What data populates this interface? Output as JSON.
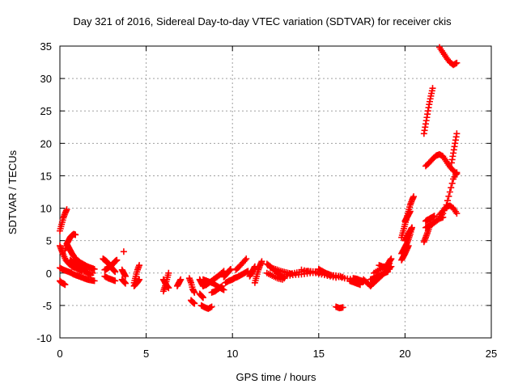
{
  "chart_data": {
    "type": "scatter",
    "title": "Day 321 of 2016, Sidereal Day-to-day VTEC variation (SDTVAR) for receiver ckis",
    "xlabel": "GPS time / hours",
    "ylabel": "SDTVAR / TECUs",
    "xlim": [
      0,
      25
    ],
    "ylim": [
      -10,
      35
    ],
    "xticks": [
      0,
      5,
      10,
      15,
      20,
      25
    ],
    "yticks": [
      -10,
      -5,
      0,
      5,
      10,
      15,
      20,
      25,
      30,
      35
    ],
    "xtick_labels": [
      "0",
      "5",
      "10",
      "15",
      "20",
      "25"
    ],
    "ytick_labels": [
      "-10",
      "-5",
      "0",
      "5",
      "10",
      "15",
      "20",
      "25",
      "30",
      "35"
    ],
    "grid": true,
    "marker": "+",
    "color": "#ff0000",
    "series": [
      {
        "name": "SDTVAR",
        "segments": [
          {
            "x": [
              0.0,
              0.1,
              0.2,
              0.3,
              0.4
            ],
            "y": [
              6.5,
              7.5,
              8.5,
              9.2,
              9.8
            ]
          },
          {
            "x": [
              0.0,
              0.1,
              0.2,
              0.3
            ],
            "y": [
              -1.2,
              -1.5,
              -1.6,
              -1.8
            ]
          },
          {
            "x": [
              0.0,
              0.1,
              0.2,
              0.35,
              0.5,
              0.7,
              0.9,
              1.1,
              1.3,
              1.6,
              1.9
            ],
            "y": [
              4.2,
              3.5,
              2.8,
              2.0,
              1.5,
              1.0,
              0.8,
              0.5,
              0.3,
              0.1,
              0.0
            ]
          },
          {
            "x": [
              0.3,
              0.4,
              0.5,
              0.6,
              0.7,
              0.8,
              0.9
            ],
            "y": [
              3.5,
              4.5,
              5.0,
              5.5,
              5.8,
              6.0,
              5.9
            ]
          },
          {
            "x": [
              0.4,
              0.5,
              0.6,
              0.7,
              0.8,
              1.0,
              1.2,
              1.4,
              1.6,
              1.8,
              2.0
            ],
            "y": [
              4.5,
              4.0,
              3.5,
              3.0,
              2.6,
              2.0,
              1.6,
              1.3,
              1.0,
              0.8,
              0.6
            ]
          },
          {
            "x": [
              0.0,
              0.2,
              0.4,
              0.6,
              0.8,
              1.0,
              1.2,
              1.4,
              1.6,
              1.8,
              2.0
            ],
            "y": [
              0.8,
              0.5,
              0.3,
              0.1,
              -0.2,
              -0.4,
              -0.6,
              -0.8,
              -1.0,
              -1.1,
              -1.2
            ]
          },
          {
            "x": [
              0.6,
              0.8,
              1.0,
              1.2,
              1.4,
              1.6,
              1.8
            ],
            "y": [
              2.0,
              1.6,
              1.2,
              0.8,
              0.4,
              0.0,
              -0.3
            ]
          },
          {
            "x": [
              2.5,
              2.6,
              2.7,
              2.8,
              2.9,
              3.0,
              3.1,
              3.2
            ],
            "y": [
              2.2,
              2.0,
              1.8,
              1.5,
              1.2,
              0.8,
              0.5,
              0.2
            ]
          },
          {
            "x": [
              2.6,
              2.7,
              2.8,
              2.9,
              3.0,
              3.1,
              3.2,
              3.3
            ],
            "y": [
              0.5,
              0.6,
              0.8,
              1.0,
              1.2,
              1.5,
              1.8,
              2.0
            ]
          },
          {
            "x": [
              2.6,
              2.8,
              3.0,
              3.2
            ],
            "y": [
              -0.5,
              -0.8,
              -1.0,
              -1.2
            ]
          },
          {
            "x": [
              3.6,
              3.7,
              3.8
            ],
            "y": [
              0.5,
              0.0,
              -0.5
            ]
          },
          {
            "x": [
              3.6,
              3.7,
              3.8
            ],
            "y": [
              -1.0,
              -1.3,
              -1.6
            ]
          },
          {
            "x": [
              3.7
            ],
            "y": [
              3.3
            ]
          },
          {
            "x": [
              4.3,
              4.4,
              4.5,
              4.6
            ],
            "y": [
              -1.5,
              -0.5,
              0.5,
              1.2
            ]
          },
          {
            "x": [
              4.3,
              4.4,
              4.5,
              4.6
            ],
            "y": [
              -2.0,
              -1.7,
              -1.4,
              -1.0
            ]
          },
          {
            "x": [
              6.0,
              6.1,
              6.2,
              6.3
            ],
            "y": [
              -2.8,
              -2.0,
              -1.0,
              0.0
            ]
          },
          {
            "x": [
              6.0,
              6.1,
              6.2,
              6.3
            ],
            "y": [
              -1.0,
              -1.5,
              -2.0,
              -2.3
            ]
          },
          {
            "x": [
              6.8,
              6.9,
              7.0
            ],
            "y": [
              -2.0,
              -1.5,
              -1.0
            ]
          },
          {
            "x": [
              7.5,
              7.6,
              7.7,
              7.8
            ],
            "y": [
              -0.8,
              -1.5,
              -2.5,
              -3.0
            ]
          },
          {
            "x": [
              7.6,
              7.7,
              7.8
            ],
            "y": [
              -4.2,
              -4.5,
              -4.7
            ]
          },
          {
            "x": [
              8.1,
              8.2,
              8.3
            ],
            "y": [
              -1.0,
              -1.5,
              -2.0
            ]
          },
          {
            "x": [
              8.1,
              8.2,
              8.3
            ],
            "y": [
              -3.2,
              -3.5,
              -3.8
            ]
          },
          {
            "x": [
              8.2,
              8.4,
              8.6,
              8.8
            ],
            "y": [
              -5.0,
              -5.3,
              -5.5,
              -5.2
            ]
          },
          {
            "x": [
              8.3,
              8.5,
              8.7,
              8.9,
              9.1,
              9.3,
              9.5
            ],
            "y": [
              -2.0,
              -1.8,
              -1.4,
              -1.0,
              -0.6,
              -0.2,
              0.3
            ]
          },
          {
            "x": [
              8.3,
              8.5,
              8.7,
              8.9,
              9.1,
              9.3,
              9.5
            ],
            "y": [
              -1.0,
              -1.2,
              -1.4,
              -1.6,
              -2.0,
              -2.3,
              -2.6
            ]
          },
          {
            "x": [
              8.8,
              9.0,
              9.2,
              9.4
            ],
            "y": [
              -3.0,
              -2.8,
              -2.4,
              -2.0
            ]
          },
          {
            "x": [
              9.5,
              9.6,
              9.7,
              9.8,
              9.9
            ],
            "y": [
              -0.6,
              -0.3,
              0.0,
              0.3,
              0.6
            ]
          },
          {
            "x": [
              9.6,
              9.8,
              10.0,
              10.1
            ],
            "y": [
              -1.5,
              -1.2,
              -1.0,
              -0.8
            ]
          },
          {
            "x": [
              10.2,
              10.4,
              10.6,
              10.8
            ],
            "y": [
              0.5,
              1.0,
              1.6,
              2.2
            ]
          },
          {
            "x": [
              10.1,
              10.3,
              10.5,
              10.7,
              10.9
            ],
            "y": [
              -0.8,
              -0.6,
              -0.3,
              0.0,
              0.3
            ]
          },
          {
            "x": [
              11.0,
              11.1,
              11.2,
              11.3
            ],
            "y": [
              -0.5,
              0.0,
              0.5,
              1.0
            ]
          },
          {
            "x": [
              11.3,
              11.4,
              11.5,
              11.6,
              11.7
            ],
            "y": [
              -1.5,
              -0.5,
              0.5,
              1.2,
              1.8
            ]
          },
          {
            "x": [
              12.0,
              12.2,
              12.4,
              12.6,
              12.8,
              13.0
            ],
            "y": [
              1.4,
              1.0,
              0.5,
              0.0,
              -0.4,
              -0.8
            ]
          },
          {
            "x": [
              12.0,
              12.3,
              12.6,
              12.9
            ],
            "y": [
              0.0,
              -0.4,
              -0.8,
              -1.0
            ]
          },
          {
            "x": [
              12.2,
              12.5,
              12.8,
              13.1,
              13.4
            ],
            "y": [
              0.8,
              0.6,
              0.3,
              0.1,
              -0.1
            ]
          },
          {
            "x": [
              13.0,
              13.5,
              14.0,
              14.5,
              15.0,
              15.5,
              16.0,
              16.5,
              17.0
            ],
            "y": [
              -0.5,
              -0.3,
              -0.2,
              0.0,
              0.1,
              -0.2,
              -0.5,
              -0.8,
              -1.0
            ]
          },
          {
            "x": [
              13.2,
              13.6,
              14.0,
              14.4,
              14.8,
              15.2,
              15.6,
              16.0,
              16.4
            ],
            "y": [
              -0.2,
              0.0,
              0.2,
              0.3,
              0.2,
              0.0,
              -0.3,
              -0.4,
              -0.6
            ]
          },
          {
            "x": [
              14.0,
              14.5,
              15.0,
              15.5,
              16.0
            ],
            "y": [
              0.5,
              0.2,
              -0.1,
              -0.4,
              -0.7
            ]
          },
          {
            "x": [
              15.0,
              15.2,
              15.4,
              15.6
            ],
            "y": [
              0.6,
              0.3,
              0.0,
              -0.2
            ]
          },
          {
            "x": [
              16.0,
              16.2,
              16.4
            ],
            "y": [
              -5.2,
              -5.4,
              -5.3
            ]
          },
          {
            "x": [
              16.8,
              17.0,
              17.2,
              17.4
            ],
            "y": [
              -1.2,
              -1.4,
              -1.6,
              -1.8
            ]
          },
          {
            "x": [
              17.0,
              17.2,
              17.4,
              17.6
            ],
            "y": [
              -0.8,
              -0.9,
              -1.1,
              -1.3
            ]
          },
          {
            "x": [
              17.6,
              17.8,
              18.0
            ],
            "y": [
              -1.0,
              -1.5,
              -2.0
            ]
          },
          {
            "x": [
              18.0,
              18.2,
              18.4,
              18.6,
              18.8,
              19.0,
              19.2
            ],
            "y": [
              -2.0,
              -1.5,
              -1.0,
              -0.5,
              0.0,
              0.5,
              1.0
            ]
          },
          {
            "x": [
              18.0,
              18.2,
              18.4,
              18.6,
              18.8,
              19.0
            ],
            "y": [
              -1.0,
              -0.8,
              -0.5,
              -0.3,
              0.0,
              0.2
            ]
          },
          {
            "x": [
              18.2,
              18.5,
              18.8,
              19.1
            ],
            "y": [
              0.0,
              0.5,
              1.0,
              1.5
            ]
          },
          {
            "x": [
              18.5,
              18.7,
              18.9,
              19.1
            ],
            "y": [
              1.2,
              1.0,
              0.8,
              0.6
            ]
          },
          {
            "x": [
              19.0,
              19.1,
              19.2
            ],
            "y": [
              1.2,
              1.8,
              2.2
            ]
          },
          {
            "x": [
              19.8,
              19.9,
              20.0,
              20.1,
              20.2,
              20.3,
              20.4,
              20.5
            ],
            "y": [
              5.5,
              6.5,
              7.5,
              8.5,
              9.5,
              10.5,
              11.2,
              11.8
            ]
          },
          {
            "x": [
              19.8,
              19.9,
              20.0,
              20.1,
              20.2,
              20.3,
              20.4
            ],
            "y": [
              3.0,
              3.5,
              4.0,
              4.5,
              5.2,
              6.0,
              7.0
            ]
          },
          {
            "x": [
              19.8,
              19.9,
              20.0,
              20.1,
              20.2
            ],
            "y": [
              2.0,
              2.5,
              3.0,
              3.6,
              4.2
            ]
          },
          {
            "x": [
              20.0,
              20.1,
              20.2,
              20.3,
              20.4
            ],
            "y": [
              5.0,
              5.5,
              6.0,
              6.5,
              7.0
            ]
          },
          {
            "x": [
              20.0,
              20.1,
              20.2,
              20.3
            ],
            "y": [
              8.0,
              8.5,
              9.0,
              9.5
            ]
          },
          {
            "x": [
              21.1,
              21.2,
              21.3,
              21.4,
              21.5,
              21.6
            ],
            "y": [
              21.5,
              23.0,
              24.5,
              26.0,
              27.3,
              28.5
            ]
          },
          {
            "x": [
              21.1,
              21.2,
              21.3,
              21.4,
              21.5
            ],
            "y": [
              4.8,
              5.5,
              6.2,
              7.0,
              7.6
            ]
          },
          {
            "x": [
              21.2,
              21.4,
              21.6,
              21.8,
              22.0,
              22.2
            ],
            "y": [
              7.0,
              7.3,
              7.6,
              8.0,
              8.4,
              8.6
            ]
          },
          {
            "x": [
              21.2,
              21.3,
              21.4,
              21.5,
              21.6,
              21.7
            ],
            "y": [
              8.0,
              8.2,
              8.3,
              8.5,
              8.6,
              8.8
            ]
          },
          {
            "x": [
              21.2,
              21.4,
              21.6,
              21.8,
              22.0,
              22.2,
              22.4,
              22.6,
              22.8,
              23.0
            ],
            "y": [
              16.5,
              17.0,
              17.6,
              18.1,
              18.3,
              18.0,
              17.2,
              16.4,
              15.8,
              15.3
            ]
          },
          {
            "x": [
              22.0,
              22.2,
              22.4,
              22.6,
              22.8,
              23.0
            ],
            "y": [
              34.8,
              34.0,
              33.2,
              32.5,
              32.1,
              32.4
            ]
          },
          {
            "x": [
              22.0,
              22.2,
              22.4,
              22.6,
              22.8,
              23.0
            ],
            "y": [
              9.0,
              9.6,
              10.2,
              10.4,
              10.0,
              9.2
            ]
          },
          {
            "x": [
              22.0,
              22.2,
              22.4,
              22.6,
              22.8,
              23.0
            ],
            "y": [
              8.5,
              9.2,
              10.5,
              12.5,
              14.5,
              15.5
            ]
          },
          {
            "x": [
              22.7,
              22.8,
              22.9,
              23.0
            ],
            "y": [
              17.0,
              18.5,
              20.0,
              21.5
            ]
          }
        ]
      }
    ]
  }
}
